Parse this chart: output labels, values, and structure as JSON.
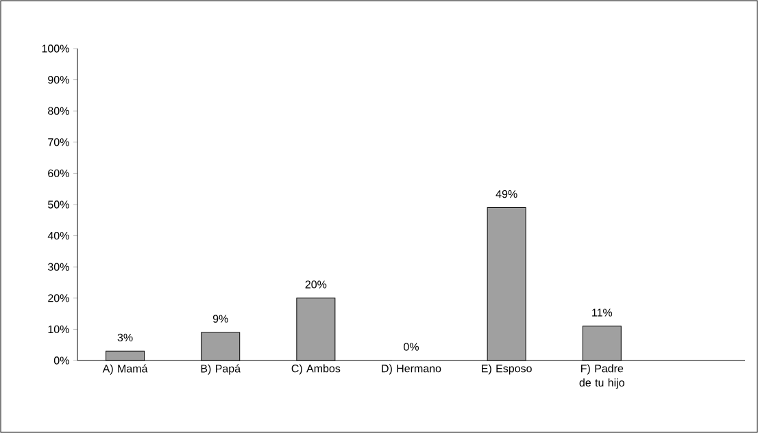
{
  "chart_data": {
    "type": "bar",
    "categories": [
      "A) Mamá",
      "B) Papá",
      "C) Ambos",
      "D) Hermano",
      "E) Esposo",
      "F) Padre de tu hijo",
      null
    ],
    "values": [
      3,
      9,
      20,
      0,
      49,
      11,
      null
    ],
    "value_labels": [
      "3%",
      "9%",
      "20%",
      "0%",
      "49%",
      "11%",
      null
    ],
    "color": "#a0a0a0",
    "ylim": [
      0,
      100
    ],
    "yticks": [
      {
        "value": 0,
        "label": "0%"
      },
      {
        "value": 10,
        "label": "10%"
      },
      {
        "value": 20,
        "label": "20%"
      },
      {
        "value": 30,
        "label": "30%"
      },
      {
        "value": 40,
        "label": "40%"
      },
      {
        "value": 50,
        "label": "50%"
      },
      {
        "value": 60,
        "label": "60%"
      },
      {
        "value": 70,
        "label": "70%"
      },
      {
        "value": 80,
        "label": "80%"
      },
      {
        "value": 90,
        "label": "90%"
      },
      {
        "value": 100,
        "label": "100%"
      }
    ]
  }
}
